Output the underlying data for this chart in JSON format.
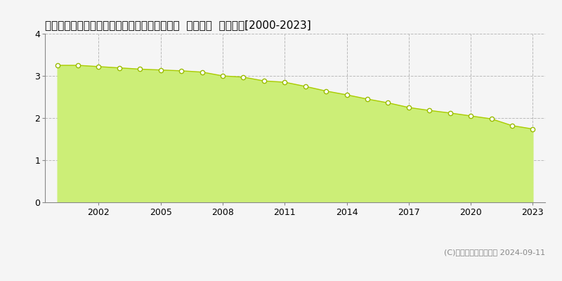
{
  "title": "鹿児島県熊毛郡南種子町茎永字白木峯８０番３  地価公示  地価推移[2000-2023]",
  "years": [
    2000,
    2001,
    2002,
    2003,
    2004,
    2005,
    2006,
    2007,
    2008,
    2009,
    2010,
    2011,
    2012,
    2013,
    2014,
    2015,
    2016,
    2017,
    2018,
    2019,
    2020,
    2021,
    2022,
    2023
  ],
  "values": [
    3.25,
    3.25,
    3.22,
    3.19,
    3.16,
    3.14,
    3.12,
    3.09,
    3.0,
    2.97,
    2.88,
    2.85,
    2.75,
    2.64,
    2.55,
    2.45,
    2.36,
    2.25,
    2.18,
    2.12,
    2.05,
    1.98,
    1.82,
    1.74
  ],
  "fill_color": "#ccee77",
  "line_color": "#aacc00",
  "marker_face_color": "#ffffff",
  "marker_edge_color": "#99bb00",
  "bg_color": "#f5f5f5",
  "plot_bg_color": "#f5f5f5",
  "grid_color": "#bbbbbb",
  "spine_color": "#888888",
  "ylim": [
    0,
    4
  ],
  "yticks": [
    0,
    1,
    2,
    3,
    4
  ],
  "xticks": [
    2002,
    2005,
    2008,
    2011,
    2014,
    2017,
    2020,
    2023
  ],
  "xlim_left": 1999.4,
  "xlim_right": 2023.6,
  "copyright_text": "(C)土地価格ドットコム 2024-09-11",
  "title_fontsize": 11,
  "axis_fontsize": 9,
  "legend_fontsize": 9,
  "copyright_fontsize": 8
}
